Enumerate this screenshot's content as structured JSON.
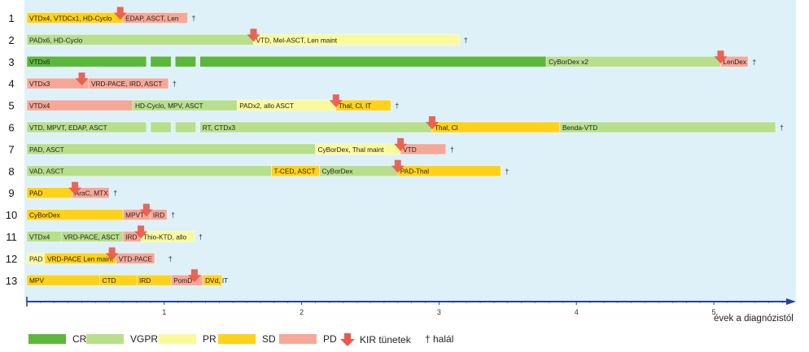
{
  "colors": {
    "CR": "#5cb83a",
    "VGPR": "#b8df8c",
    "PR": "#fafa9c",
    "SD": "#ffd21a",
    "PD": "#f6a898",
    "arrow": "#ea5a4a",
    "background": "#dff1f8",
    "axis": "#2a3f9a"
  },
  "chart_data": {
    "type": "gantt",
    "xlabel": "évek a diagnózistól",
    "xlim": [
      0,
      5.6
    ],
    "xticks": [
      1,
      2,
      3,
      4,
      5
    ],
    "legend": [
      {
        "key": "CR",
        "label": "CR"
      },
      {
        "key": "VGPR",
        "label": "VGPR"
      },
      {
        "key": "PR",
        "label": "PR"
      },
      {
        "key": "SD",
        "label": "SD"
      },
      {
        "key": "PD",
        "label": "PD"
      },
      {
        "key": "arrow",
        "label": "KIR tünetek"
      },
      {
        "key": "death",
        "label": "† halál"
      }
    ],
    "death_symbol": "†",
    "patients": [
      {
        "id": "1",
        "segments": [
          {
            "start": 0,
            "end": 0.7,
            "state": "SD",
            "label": "VTDx4, VTDCx1, HD-Cyclo"
          },
          {
            "start": 0.7,
            "end": 1.17,
            "state": "PD",
            "label": "EDAP, ASCT, Len"
          }
        ],
        "kir": [
          0.68
        ],
        "death": 1.17
      },
      {
        "id": "2",
        "segments": [
          {
            "start": 0,
            "end": 1.65,
            "state": "VGPR",
            "label": "PADx6, HD-Cyclo"
          },
          {
            "start": 1.65,
            "end": 3.15,
            "state": "PR",
            "label": "VTD, Mel-ASCT, Len maint"
          }
        ],
        "kir": [
          1.65
        ],
        "death": 3.15
      },
      {
        "id": "3",
        "segments": [
          {
            "start": 0,
            "end": 0.87,
            "state": "CR",
            "label": "VTDx6"
          },
          {
            "start": 0.9,
            "end": 1.05,
            "state": "CR",
            "label": ""
          },
          {
            "start": 1.08,
            "end": 1.23,
            "state": "CR",
            "label": ""
          },
          {
            "start": 1.26,
            "end": 3.78,
            "state": "CR",
            "label": ""
          },
          {
            "start": 3.78,
            "end": 5.05,
            "state": "VGPR",
            "label": "CyBorDex x2"
          },
          {
            "start": 5.05,
            "end": 5.25,
            "state": "PD",
            "label": "LenDex"
          }
        ],
        "kir": [
          5.05
        ],
        "death": 5.25
      },
      {
        "id": "4",
        "segments": [
          {
            "start": 0,
            "end": 0.45,
            "state": "PD",
            "label": "VTDx3"
          },
          {
            "start": 0.45,
            "end": 1.03,
            "state": "PD",
            "label": "VRD-PACE, IRD, ASCT"
          }
        ],
        "kir": [
          0.4
        ],
        "death": 1.03
      },
      {
        "id": "5",
        "segments": [
          {
            "start": 0,
            "end": 0.77,
            "state": "PD",
            "label": "VTDx4"
          },
          {
            "start": 0.77,
            "end": 1.53,
            "state": "VGPR",
            "label": "HD-Cyclo, MPV, ASCT"
          },
          {
            "start": 1.53,
            "end": 2.25,
            "state": "PR",
            "label": "PADx2, allo ASCT"
          },
          {
            "start": 2.25,
            "end": 2.65,
            "state": "SD",
            "label": "Thal, Cl, IT"
          }
        ],
        "kir": [
          2.25
        ],
        "death": 2.65
      },
      {
        "id": "6",
        "segments": [
          {
            "start": 0,
            "end": 0.87,
            "state": "VGPR",
            "label": "VTD, MPVT, EDAP, ASCT"
          },
          {
            "start": 0.9,
            "end": 1.05,
            "state": "VGPR",
            "label": ""
          },
          {
            "start": 1.08,
            "end": 1.23,
            "state": "VGPR",
            "label": ""
          },
          {
            "start": 1.26,
            "end": 2.95,
            "state": "VGPR",
            "label": "RT, CTDx3"
          },
          {
            "start": 2.95,
            "end": 3.88,
            "state": "SD",
            "label": "Thal, Cl"
          },
          {
            "start": 3.88,
            "end": 5.45,
            "state": "VGPR",
            "label": "Benda-VTD"
          }
        ],
        "kir": [
          2.95
        ],
        "death": 5.45
      },
      {
        "id": "7",
        "segments": [
          {
            "start": 0,
            "end": 2.1,
            "state": "VGPR",
            "label": "PAD, ASCT"
          },
          {
            "start": 2.1,
            "end": 2.72,
            "state": "PR",
            "label": "CyBorDex, Thal maint"
          },
          {
            "start": 2.72,
            "end": 3.05,
            "state": "PD",
            "label": "VTD"
          }
        ],
        "kir": [
          2.72
        ],
        "death": 3.05
      },
      {
        "id": "8",
        "segments": [
          {
            "start": 0,
            "end": 1.78,
            "state": "VGPR",
            "label": "VAD, ASCT"
          },
          {
            "start": 1.78,
            "end": 2.13,
            "state": "SD",
            "label": "T-CED, ASCT"
          },
          {
            "start": 2.13,
            "end": 2.7,
            "state": "VGPR",
            "label": "CyBorDex"
          },
          {
            "start": 2.7,
            "end": 3.45,
            "state": "SD",
            "label": "PAD-Thal"
          }
        ],
        "kir": [
          2.7
        ],
        "death": 3.45
      },
      {
        "id": "9",
        "segments": [
          {
            "start": 0,
            "end": 0.33,
            "state": "SD",
            "label": "PAD"
          },
          {
            "start": 0.33,
            "end": 0.6,
            "state": "PD",
            "label": "AraC, MTX"
          }
        ],
        "kir": [
          0.35
        ],
        "death": 0.6
      },
      {
        "id": "10",
        "segments": [
          {
            "start": 0,
            "end": 0.7,
            "state": "SD",
            "label": "CyBorDex"
          },
          {
            "start": 0.7,
            "end": 0.9,
            "state": "PD",
            "label": "MPVT"
          },
          {
            "start": 0.9,
            "end": 1.02,
            "state": "PD",
            "label": "IRD"
          }
        ],
        "kir": [
          0.87
        ],
        "death": 1.02
      },
      {
        "id": "11",
        "segments": [
          {
            "start": 0,
            "end": 0.7,
            "state": "VGPR",
            "label": "VTDx4"
          },
          {
            "start": 0.25,
            "end": 0.7,
            "state": "VGPR",
            "label": "VRD-PACE, ASCT"
          },
          {
            "start": 0.7,
            "end": 0.83,
            "state": "PD",
            "label": "IRD"
          },
          {
            "start": 0.83,
            "end": 1.22,
            "state": "PR",
            "label": "Thio-KTD, allo"
          }
        ],
        "kir": [
          0.83
        ],
        "death": 1.22
      },
      {
        "id": "12",
        "segments": [
          {
            "start": 0,
            "end": 0.13,
            "state": "PR",
            "label": "PAD"
          },
          {
            "start": 0.13,
            "end": 0.65,
            "state": "SD",
            "label": "VRD-PACE Len maint"
          },
          {
            "start": 0.65,
            "end": 0.93,
            "state": "PD",
            "label": "VTD-PACE"
          }
        ],
        "kir": [
          0.62
        ],
        "death": 1.0
      },
      {
        "id": "13",
        "segments": [
          {
            "start": 0,
            "end": 0.53,
            "state": "SD",
            "label": "MPV"
          },
          {
            "start": 0.53,
            "end": 0.8,
            "state": "SD",
            "label": "CTD"
          },
          {
            "start": 0.8,
            "end": 1.05,
            "state": "SD",
            "label": "IRD"
          },
          {
            "start": 1.05,
            "end": 1.28,
            "state": "PD",
            "label": "PomD"
          },
          {
            "start": 1.28,
            "end": 1.42,
            "state": "SD",
            "label": "DVd, IT"
          }
        ],
        "kir": [
          1.22
        ],
        "death": null
      }
    ]
  }
}
